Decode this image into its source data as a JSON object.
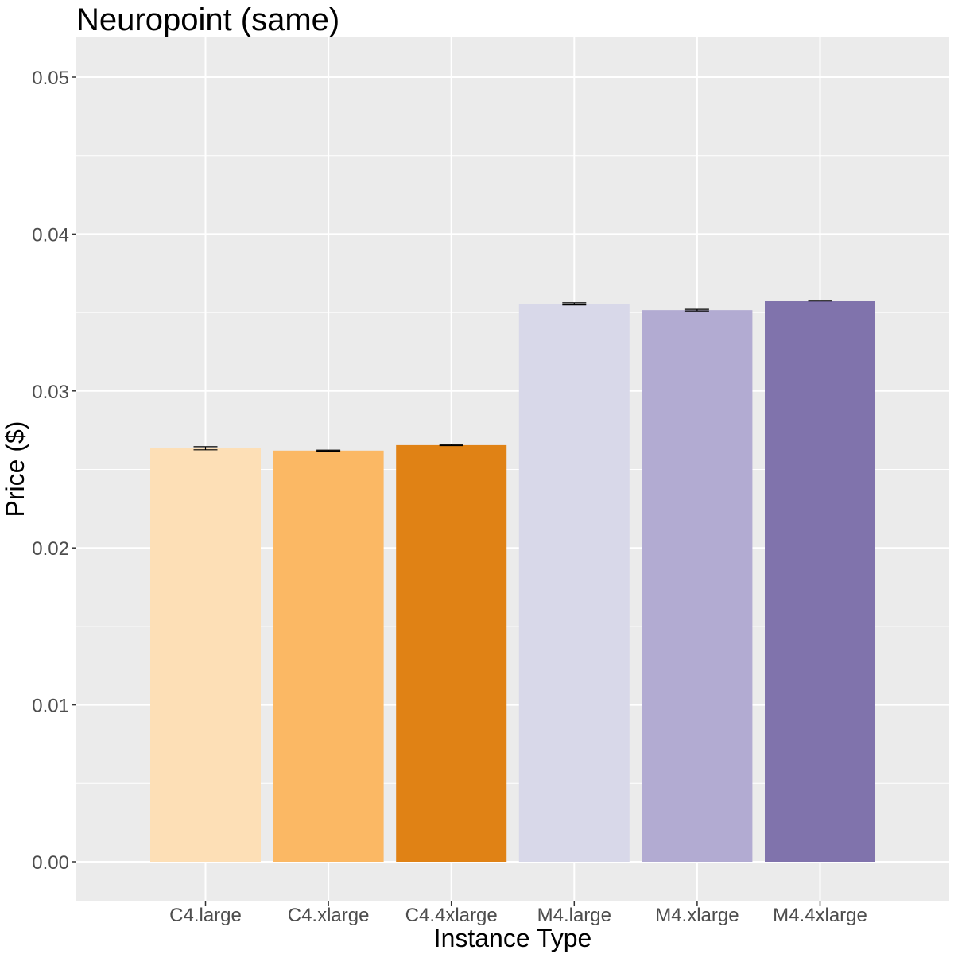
{
  "chart_data": {
    "type": "bar",
    "title": "Neuropoint (same)",
    "xlabel": "Instance Type",
    "ylabel": "Price ($)",
    "categories": [
      "C4.large",
      "C4.xlarge",
      "C4.4xlarge",
      "M4.large",
      "M4.xlarge",
      "M4.4xlarge"
    ],
    "values": [
      0.02635,
      0.0262,
      0.02655,
      0.03555,
      0.03515,
      0.03575
    ],
    "error_low": [
      0.02625,
      0.02617,
      0.02652,
      0.03548,
      0.0351,
      0.03573
    ],
    "error_high": [
      0.02645,
      0.02623,
      0.02658,
      0.03562,
      0.0352,
      0.03577
    ],
    "bar_colors": [
      "#fddfb6",
      "#fbb864",
      "#e08215",
      "#d8d8e9",
      "#b2abd2",
      "#8073ac"
    ],
    "ylim": [
      -0.0025,
      0.0525
    ],
    "yticks": [
      0.0,
      0.01,
      0.02,
      0.03,
      0.04,
      0.05
    ],
    "ytick_labels": [
      "0.00",
      "0.01",
      "0.02",
      "0.03",
      "0.04",
      "0.05"
    ],
    "grid": true,
    "legend": "none",
    "panel_background": "#ebebeb",
    "grid_color": "#ffffff"
  }
}
